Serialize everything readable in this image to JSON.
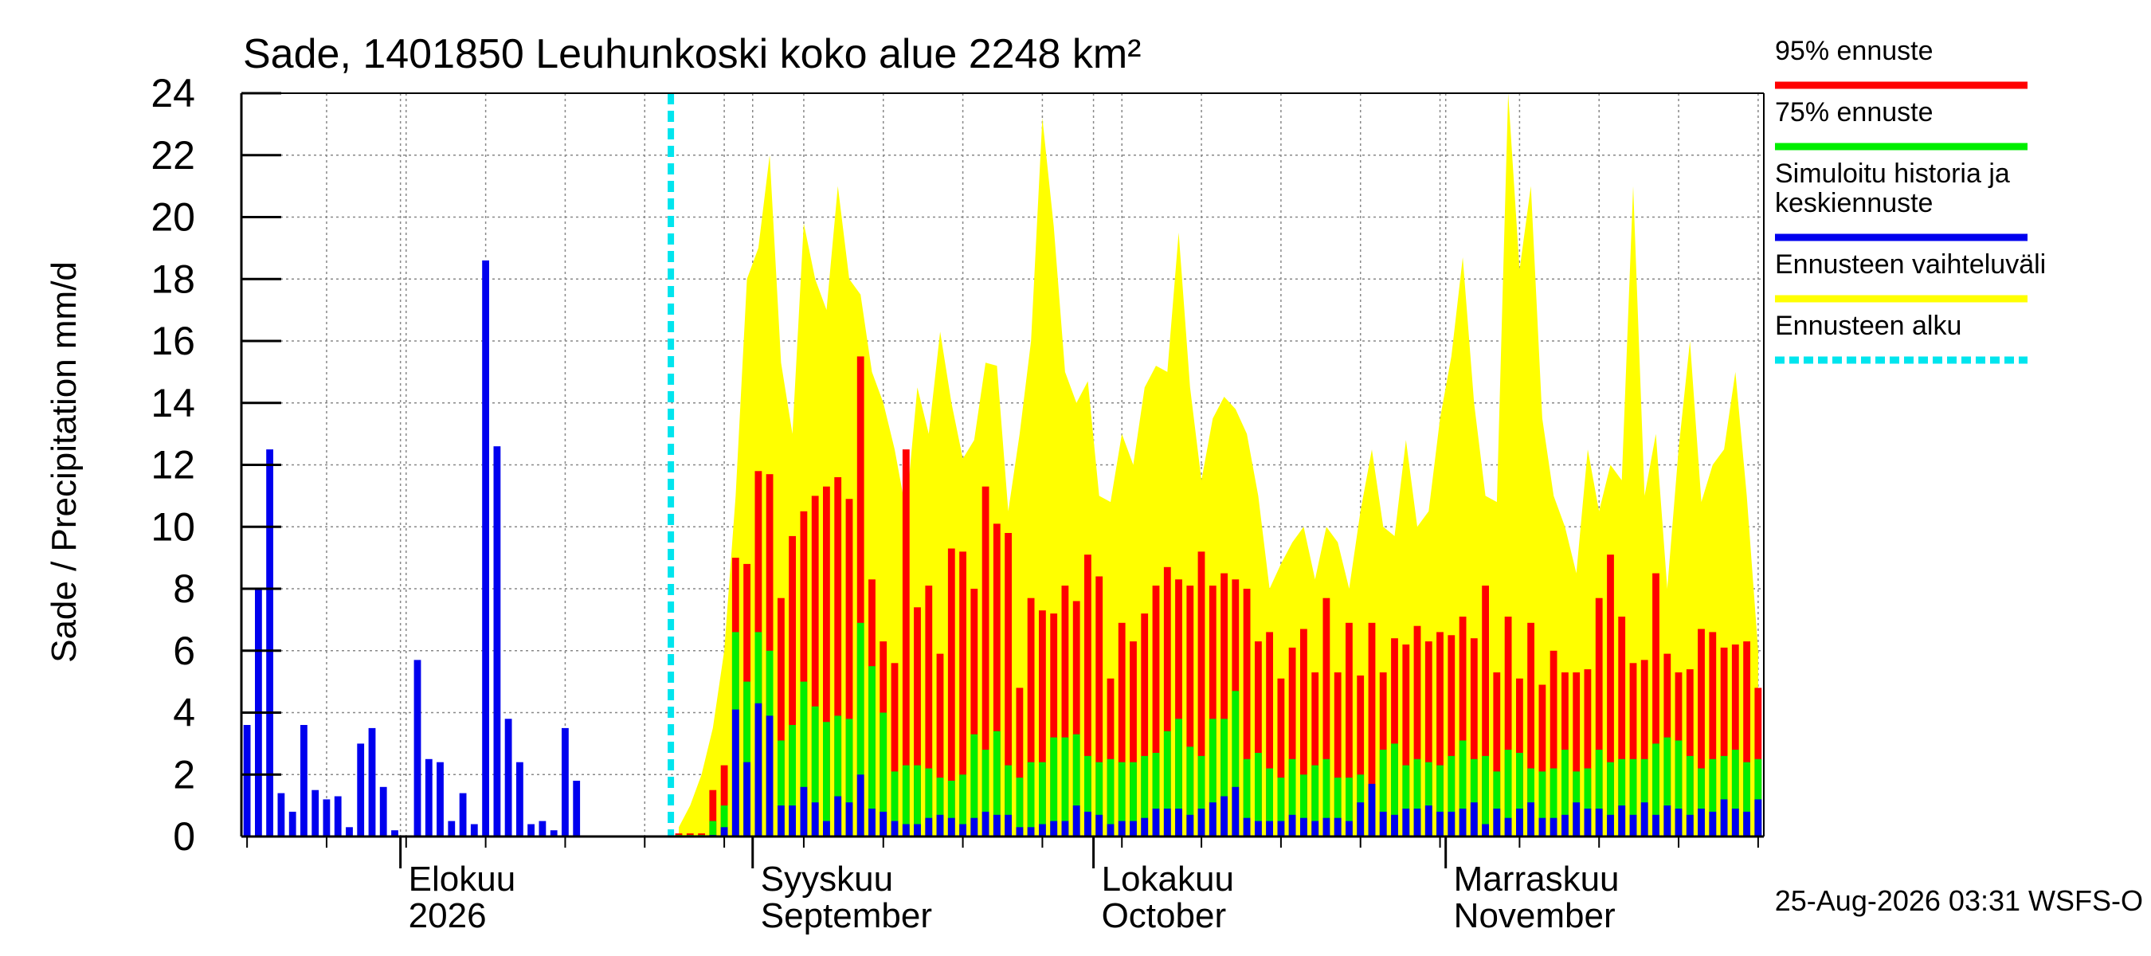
{
  "chart_data": {
    "type": "bar",
    "title": "Sade, 1401850 Leuhunkoski koko alue 2248 km²",
    "ylabel": "Sade / Precipitation   mm/d",
    "ylim": [
      0,
      24
    ],
    "yticks": [
      "0",
      "2",
      "4",
      "6",
      "8",
      "10",
      "12",
      "14",
      "16",
      "18",
      "20",
      "22",
      "24"
    ],
    "x_start": "2026-07-18",
    "x_end": "2026-11-29",
    "forecast_start": "2026-08-25",
    "month_labels": [
      {
        "date": "2026-08-01",
        "line1": "Elokuu",
        "line2": "2026"
      },
      {
        "date": "2026-09-01",
        "line1": "Syyskuu",
        "line2": "September"
      },
      {
        "date": "2026-10-01",
        "line1": "Lokakuu",
        "line2": "October"
      },
      {
        "date": "2026-11-01",
        "line1": "Marraskuu",
        "line2": "November"
      }
    ],
    "legend": [
      {
        "label": "95% ennuste",
        "color": "#ff0000",
        "style": "solid"
      },
      {
        "label": "75% ennuste",
        "color": "#00ee00",
        "style": "solid"
      },
      {
        "label": "Simuloitu historia ja keskiennuste",
        "color": "#0000ee",
        "style": "solid"
      },
      {
        "label": "Ennusteen vaihteluväli",
        "color": "#ffff00",
        "style": "solid"
      },
      {
        "label": "Ennusteen alku",
        "color": "#00e5ee",
        "style": "dashed"
      }
    ],
    "history": {
      "start": "2026-07-18",
      "values": [
        3.6,
        8.0,
        12.5,
        1.4,
        0.8,
        3.6,
        1.5,
        1.2,
        1.3,
        0.3,
        3.0,
        3.5,
        1.6,
        0.2,
        0.0,
        5.7,
        2.5,
        2.4,
        0.5,
        1.4,
        0.4,
        18.6,
        12.6,
        3.8,
        2.4,
        0.4,
        0.5,
        0.2,
        3.5,
        1.8,
        0.0
      ]
    },
    "forecast": {
      "start": "2026-08-25",
      "p95": [
        0.1,
        0.1,
        0.1,
        1.5,
        2.3,
        9.0,
        8.8,
        11.8,
        11.7,
        7.7,
        9.7,
        10.5,
        11.0,
        11.3,
        11.6,
        10.9,
        15.5,
        8.3,
        6.3,
        5.6,
        12.5,
        7.4,
        8.1,
        5.9,
        9.3,
        9.2,
        8.0,
        11.3,
        10.1,
        9.8,
        4.8,
        7.7,
        7.3,
        7.2,
        8.1,
        7.6,
        9.1,
        8.4,
        5.1,
        6.9,
        6.3,
        7.2,
        8.1,
        8.7,
        8.3,
        8.1,
        9.2,
        8.1,
        8.5,
        8.3,
        8.0,
        6.3,
        6.6,
        5.1,
        6.1,
        6.7,
        5.3,
        7.7,
        5.3,
        6.9,
        5.2,
        6.9,
        5.3,
        6.4,
        6.2,
        6.8,
        6.3,
        6.6,
        6.5,
        7.1,
        6.4,
        8.1,
        5.3,
        7.1,
        5.1,
        6.9,
        4.9,
        6.0,
        5.3,
        5.3,
        5.4,
        7.7,
        9.1,
        7.1,
        5.6,
        5.7,
        8.5,
        5.9,
        5.3,
        5.4,
        6.7,
        6.6,
        6.1,
        6.2,
        6.3,
        4.8
      ],
      "p75": [
        0.05,
        0.05,
        0.05,
        0.5,
        1.0,
        6.6,
        5.0,
        6.6,
        6.0,
        3.1,
        3.6,
        5.0,
        4.2,
        3.7,
        3.9,
        3.8,
        6.9,
        5.5,
        4.0,
        2.1,
        2.3,
        2.3,
        2.2,
        1.9,
        1.8,
        2.0,
        3.3,
        2.8,
        3.4,
        2.3,
        1.9,
        2.4,
        2.4,
        3.2,
        3.2,
        3.3,
        2.6,
        2.4,
        2.5,
        2.4,
        2.4,
        2.6,
        2.7,
        3.4,
        3.8,
        2.9,
        2.6,
        3.8,
        3.8,
        4.7,
        2.5,
        2.7,
        2.2,
        1.9,
        2.5,
        2.0,
        2.3,
        2.5,
        1.9,
        1.9,
        2.0,
        1.6,
        2.8,
        3.0,
        2.3,
        2.5,
        2.4,
        2.3,
        2.6,
        3.1,
        2.5,
        2.6,
        2.1,
        2.8,
        2.7,
        2.2,
        2.1,
        2.2,
        2.8,
        2.1,
        2.2,
        2.8,
        2.4,
        2.5,
        2.5,
        2.5,
        3.0,
        3.2,
        3.1,
        2.6,
        2.2,
        2.5,
        2.6,
        2.8,
        2.4,
        2.5
      ],
      "mean": [
        0.01,
        0.01,
        0.01,
        0.05,
        0.3,
        4.1,
        2.4,
        4.3,
        3.9,
        1.0,
        1.0,
        1.6,
        1.1,
        0.5,
        1.3,
        1.1,
        2.0,
        0.9,
        0.8,
        0.5,
        0.4,
        0.4,
        0.6,
        0.7,
        0.6,
        0.4,
        0.6,
        0.8,
        0.7,
        0.7,
        0.3,
        0.3,
        0.4,
        0.5,
        0.5,
        1.0,
        0.8,
        0.7,
        0.4,
        0.5,
        0.5,
        0.6,
        0.9,
        0.9,
        0.9,
        0.7,
        0.9,
        1.1,
        1.3,
        1.6,
        0.6,
        0.5,
        0.5,
        0.5,
        0.7,
        0.6,
        0.5,
        0.6,
        0.6,
        0.5,
        1.1,
        1.7,
        0.8,
        0.7,
        0.9,
        0.9,
        1.0,
        0.8,
        0.8,
        0.9,
        1.1,
        0.4,
        0.9,
        0.6,
        0.9,
        1.1,
        0.6,
        0.6,
        0.7,
        1.1,
        0.9,
        0.9,
        0.7,
        1.0,
        0.7,
        1.1,
        0.7,
        1.0,
        0.9,
        0.7,
        0.9,
        0.8,
        1.2,
        0.9,
        0.8,
        1.2
      ],
      "range_max": [
        0.3,
        1.0,
        2.0,
        3.5,
        6.0,
        11.0,
        18.0,
        19.0,
        22.0,
        15.3,
        13.0,
        19.8,
        18.0,
        17.0,
        21.0,
        18.0,
        17.5,
        15.0,
        14.0,
        12.5,
        10.5,
        14.5,
        13.0,
        16.3,
        14.0,
        12.2,
        12.8,
        15.3,
        15.2,
        10.5,
        13.0,
        16.0,
        23.2,
        19.7,
        15.0,
        14.0,
        14.7,
        11.0,
        10.8,
        13.0,
        12.0,
        14.5,
        15.2,
        15.0,
        19.5,
        14.5,
        11.5,
        13.5,
        14.2,
        13.8,
        13.0,
        11.0,
        8.0,
        8.8,
        9.5,
        10.0,
        8.3,
        10.0,
        9.5,
        8.0,
        10.5,
        12.5,
        10.0,
        9.7,
        12.8,
        10.0,
        10.5,
        13.5,
        15.5,
        18.7,
        14.0,
        11.0,
        10.8,
        24.0,
        18.3,
        21.0,
        13.5,
        11.0,
        10.0,
        8.5,
        12.5,
        10.5,
        12.0,
        11.5,
        21.0,
        11.0,
        13.0,
        8.0,
        12.5,
        16.0,
        10.8,
        12.0,
        12.5,
        15.0,
        11.0,
        6.0
      ]
    }
  }
}
